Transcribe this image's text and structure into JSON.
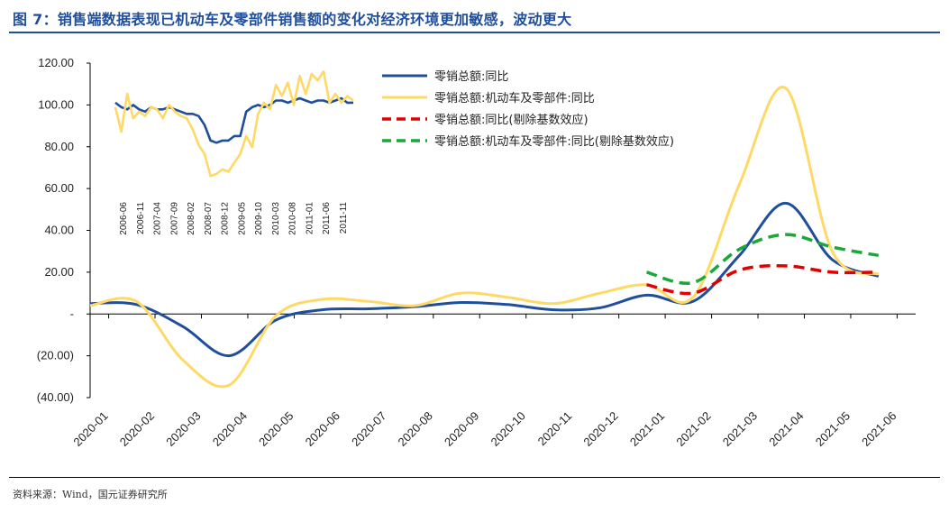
{
  "header": {
    "title": "图 7：销售端数据表现已机动车及零部件销售额的变化对经济环境更加敏感，波动更大"
  },
  "footer": {
    "source": "资料来源：Wind，国元证券研究所"
  },
  "colors": {
    "total": "#1f4e9c",
    "auto": "#ffd966",
    "total_adj": "#e00000",
    "auto_adj": "#1aa83a",
    "accent": "#1f4e9c"
  },
  "chart_data": [
    {
      "type": "line",
      "x": [
        "2020-01",
        "2020-02",
        "2020-03",
        "2020-04",
        "2020-05",
        "2020-06",
        "2020-07",
        "2020-08",
        "2020-09",
        "2020-10",
        "2020-11",
        "2020-12",
        "2021-01",
        "2021-02",
        "2021-03",
        "2021-04",
        "2021-05",
        "2021-06"
      ],
      "y_ticks": [
        "120.00",
        "100.00",
        "80.00",
        "60.00",
        "40.00",
        "20.00",
        "-",
        "(20.00)",
        "(40.00)"
      ],
      "ylim": [
        -40,
        120
      ],
      "xlabel": "",
      "ylabel": "",
      "legend_position": "top-right",
      "series": [
        {
          "name": "零销总额:同比",
          "color": "#1f4e9c",
          "style": "solid",
          "values": [
            5,
            4.5,
            -6,
            -20,
            -3,
            2,
            2.5,
            3.5,
            5.5,
            4.5,
            2,
            3,
            9,
            6,
            28,
            53,
            26,
            18
          ]
        },
        {
          "name": "零销总额:机动车及零部件:同比",
          "color": "#ffd966",
          "style": "solid",
          "values": [
            4,
            6,
            -22,
            -34,
            -1,
            7,
            6,
            4,
            10,
            8,
            5,
            10,
            14,
            8,
            62,
            108,
            30,
            19
          ]
        },
        {
          "name": "零销总额:同比(剔除基数效应)",
          "color": "#e00000",
          "style": "dashed",
          "values": [
            null,
            null,
            null,
            null,
            null,
            null,
            null,
            null,
            null,
            null,
            null,
            null,
            14,
            10,
            21,
            23,
            20,
            20
          ]
        },
        {
          "name": "零销总额:机动车及零部件:同比(剔除基数效应)",
          "color": "#1aa83a",
          "style": "dashed",
          "values": [
            null,
            null,
            null,
            null,
            null,
            null,
            null,
            null,
            null,
            null,
            null,
            null,
            20,
            15,
            31,
            38,
            32,
            28
          ]
        }
      ]
    },
    {
      "type": "line",
      "inset": true,
      "x_labels": [
        "2006-06",
        "2006-11",
        "2007-04",
        "2007-09",
        "2008-02",
        "2008-07",
        "2008-12",
        "2009-05",
        "2009-10",
        "2010-03",
        "2010-08",
        "2011-01",
        "2011-06",
        "2011-11"
      ],
      "series": [
        {
          "name": "零销总额:同比",
          "color": "#1f4e9c",
          "values": [
            103,
            101,
            100,
            102,
            100,
            99,
            101,
            100,
            100,
            101,
            100,
            99,
            98,
            98,
            97,
            93,
            86,
            85,
            86,
            86,
            88,
            88,
            99,
            101,
            102,
            101,
            102,
            104,
            104,
            103,
            104,
            105,
            104,
            103,
            104,
            104,
            103,
            104,
            105,
            103,
            103
          ]
        },
        {
          "name": "零销总额:机动车及零部件:同比",
          "color": "#ffd966",
          "values": [
            101,
            90,
            107,
            96,
            99,
            97,
            101,
            100,
            96,
            102,
            99,
            97,
            96,
            91,
            84,
            80,
            70,
            71,
            73,
            72,
            76,
            80,
            88,
            83,
            98,
            103,
            100,
            111,
            106,
            112,
            102,
            115,
            107,
            116,
            113,
            117,
            103,
            107,
            103,
            106,
            104
          ]
        }
      ]
    }
  ]
}
